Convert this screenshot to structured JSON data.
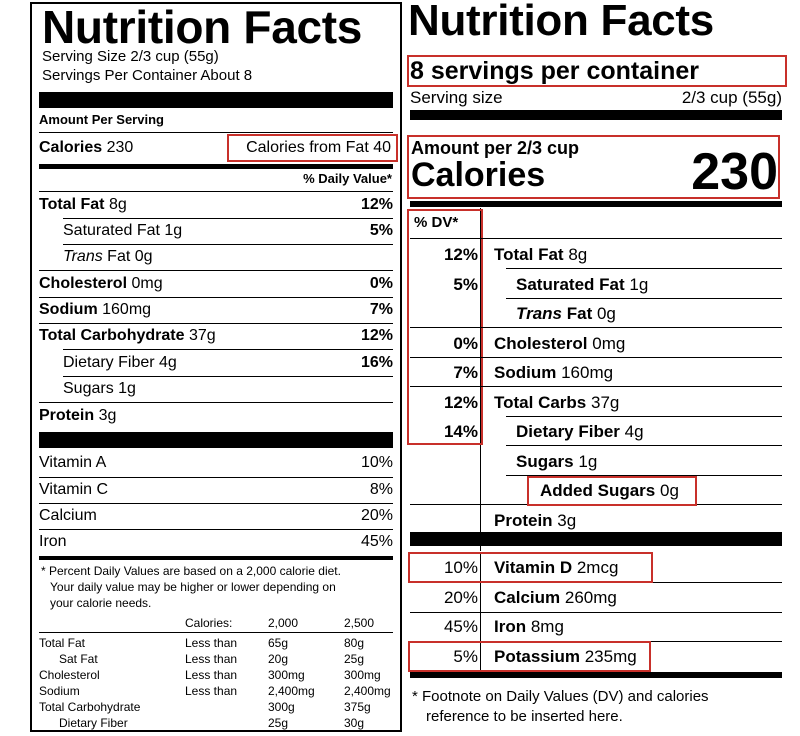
{
  "old_label": {
    "title": "Nutrition Facts",
    "serving_size": "Serving Size 2/3 cup (55g)",
    "servings_per_container": "Servings Per Container About 8",
    "amount_per_serving": "Amount Per Serving",
    "calories_label": "Calories",
    "calories_value": "230",
    "calories_from_fat": "Calories from Fat 40",
    "daily_value_header": "% Daily Value*",
    "nutrients": [
      {
        "name": "Total Fat",
        "amount": "8g",
        "dv": "12%"
      },
      {
        "name": "Saturated Fat",
        "amount": "1g",
        "dv": "5%"
      },
      {
        "name": "Trans",
        "suffix": "Fat 0g",
        "dv": ""
      },
      {
        "name": "Cholesterol",
        "amount": "0mg",
        "dv": "0%"
      },
      {
        "name": "Sodium",
        "amount": "160mg",
        "dv": "7%"
      },
      {
        "name": "Total Carbohydrate",
        "amount": "37g",
        "dv": "12%"
      },
      {
        "name": "Dietary Fiber",
        "amount": "4g",
        "dv": "16%"
      },
      {
        "name": "Sugars",
        "amount": "1g",
        "dv": ""
      },
      {
        "name": "Protein",
        "amount": "3g",
        "dv": ""
      }
    ],
    "vitamins": [
      {
        "name": "Vitamin A",
        "dv": "10%"
      },
      {
        "name": "Vitamin C",
        "dv": "8%"
      },
      {
        "name": "Calcium",
        "dv": "20%"
      },
      {
        "name": "Iron",
        "dv": "45%"
      }
    ],
    "footnote": [
      "* Percent Daily Values are based on a 2,000 calorie diet.",
      "Your daily value may be higher or lower depending on",
      "your calorie needs."
    ],
    "footnote_table": {
      "header": [
        "",
        "Calories:",
        "2,000",
        "2,500"
      ],
      "rows": [
        [
          "Total Fat",
          "Less than",
          "65g",
          "80g"
        ],
        [
          "Sat Fat",
          "Less than",
          "20g",
          "25g"
        ],
        [
          "Cholesterol",
          "Less than",
          "300mg",
          "300mg"
        ],
        [
          "Sodium",
          "Less than",
          "2,400mg",
          "2,400mg"
        ],
        [
          "Total Carbohydrate",
          "",
          "300g",
          "375g"
        ],
        [
          "Dietary Fiber",
          "",
          "25g",
          "30g"
        ]
      ]
    }
  },
  "new_label": {
    "title": "Nutrition Facts",
    "servings_per_container": "8 servings per container",
    "serving_size_label": "Serving size",
    "serving_size_value": "2/3 cup (55g)",
    "amount_per": "Amount per 2/3 cup",
    "calories_label": "Calories",
    "calories_value": "230",
    "dv_header": "% DV*",
    "nutrients": [
      {
        "dv": "12%",
        "name": "Total Fat",
        "amount": "8g"
      },
      {
        "dv": "5%",
        "name": "Saturated Fat",
        "amount": "1g"
      },
      {
        "dv": "",
        "name": "Trans",
        "suffix": "Fat",
        "amount": "0g"
      },
      {
        "dv": "0%",
        "name": "Cholesterol",
        "amount": "0mg"
      },
      {
        "dv": "7%",
        "name": "Sodium",
        "amount": "160mg"
      },
      {
        "dv": "12%",
        "name": "Total Carbs",
        "amount": "37g"
      },
      {
        "dv": "14%",
        "name": "Dietary Fiber",
        "amount": "4g"
      },
      {
        "dv": "",
        "name": "Sugars",
        "amount": "1g"
      },
      {
        "dv": "",
        "name": "Added Sugars",
        "amount": "0g"
      },
      {
        "dv": "",
        "name": "Protein",
        "amount": "3g"
      }
    ],
    "vitamins": [
      {
        "dv": "10%",
        "name": "Vitamin D",
        "amount": "2mcg"
      },
      {
        "dv": "20%",
        "name": "Calcium",
        "amount": "260mg"
      },
      {
        "dv": "45%",
        "name": "Iron",
        "amount": "8mg"
      },
      {
        "dv": "5%",
        "name": "Potassium",
        "amount": "235mg"
      }
    ],
    "footnote": [
      "*  Footnote on Daily Values (DV) and calories",
      "reference to be inserted here."
    ]
  },
  "highlight_color": "#c8302a"
}
